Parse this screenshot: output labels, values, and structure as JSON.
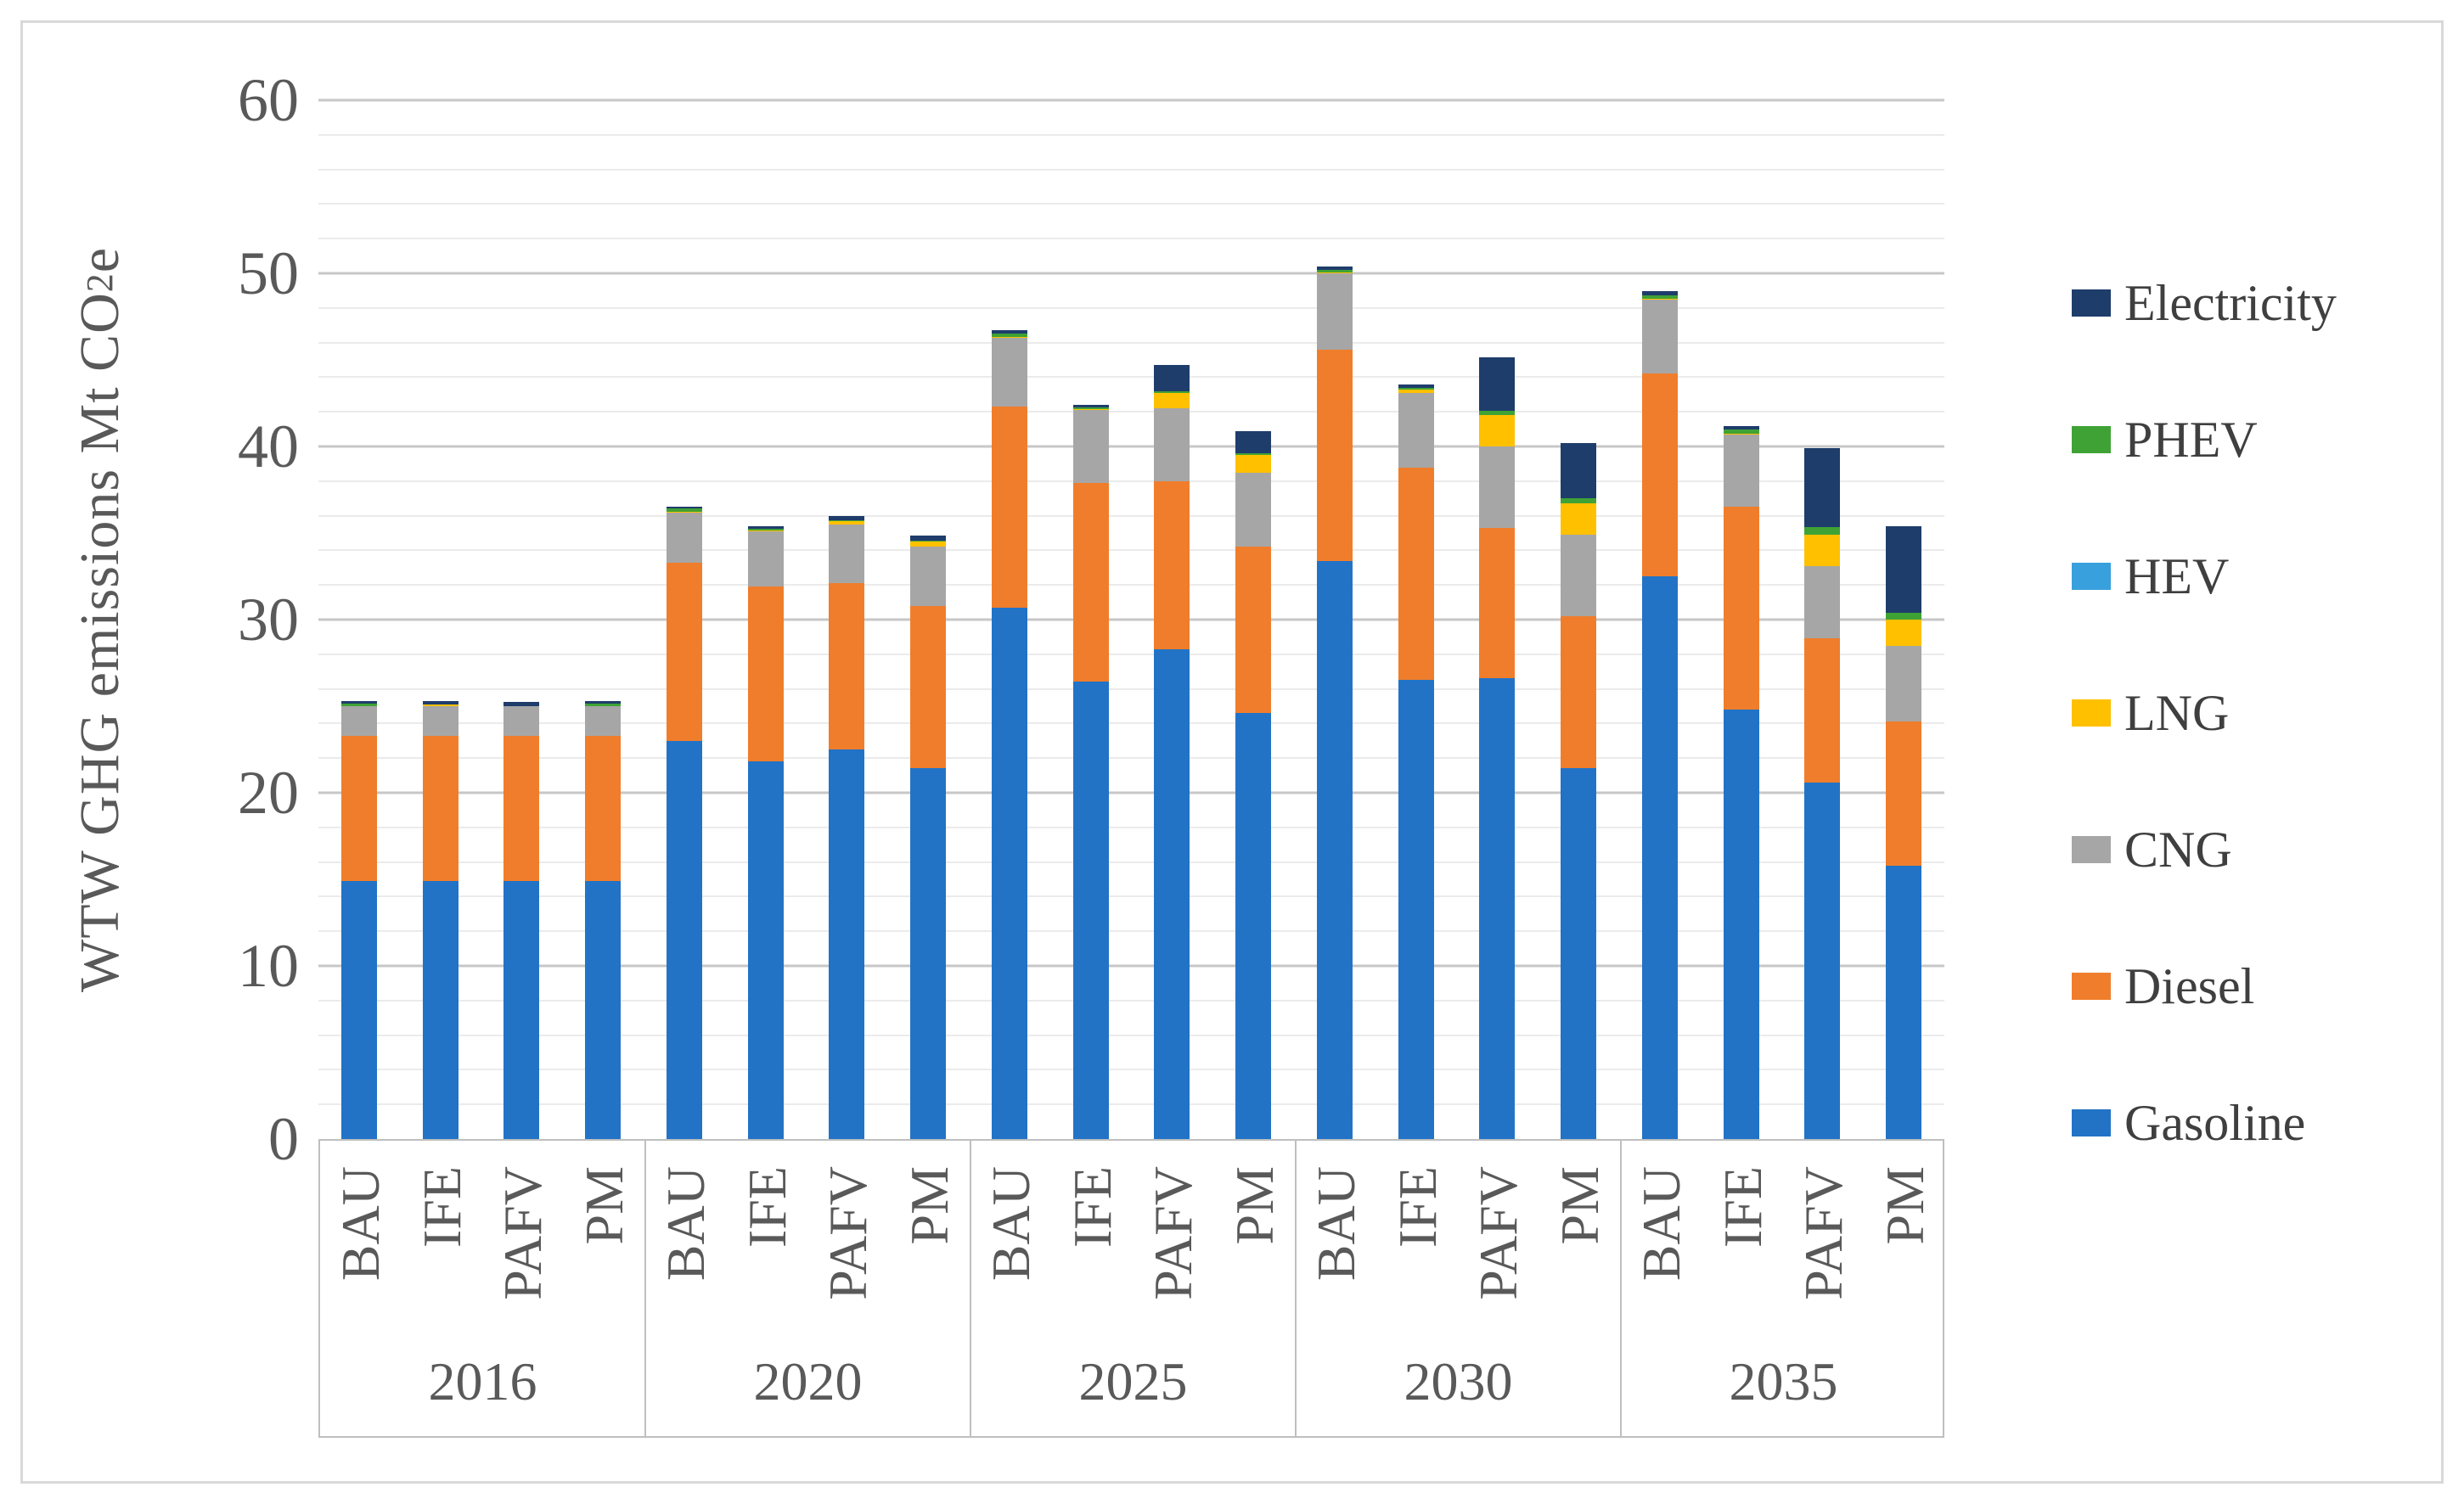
{
  "chart_data": {
    "type": "bar",
    "stacked": true,
    "title": "",
    "ylabel": {
      "prefix": "WTW GHG emissions Mt CO",
      "sub": "2",
      "suffix": "e"
    },
    "ylim": [
      0,
      60
    ],
    "y_tick_labels": [
      "0",
      "10",
      "20",
      "30",
      "40",
      "50",
      "60"
    ],
    "y_tick_step": 10,
    "minor_grid_step": 2,
    "grid": "horizontal",
    "legend_position": "right",
    "group_labels": [
      "2016",
      "2020",
      "2025",
      "2030",
      "2035"
    ],
    "scenarios": [
      "BAU",
      "IFE",
      "PAFV",
      "PM"
    ],
    "legend_order_top_to_bottom": [
      "Electricity",
      "PHEV",
      "HEV",
      "LNG",
      "CNG",
      "Diesel",
      "Gasoline"
    ],
    "series": [
      {
        "name": "Gasoline",
        "key": "gasoline",
        "color": "#2273C6",
        "values": [
          14.9,
          14.9,
          14.9,
          14.9,
          23.0,
          21.8,
          22.5,
          21.4,
          30.7,
          26.4,
          28.3,
          24.6,
          33.4,
          26.5,
          26.6,
          21.4,
          32.5,
          24.8,
          20.6,
          15.8
        ]
      },
      {
        "name": "Diesel",
        "key": "diesel",
        "color": "#F07D2B",
        "values": [
          8.4,
          8.4,
          8.4,
          8.4,
          10.3,
          10.1,
          9.6,
          9.4,
          11.6,
          11.5,
          9.7,
          9.6,
          12.2,
          12.3,
          8.7,
          8.8,
          11.7,
          11.7,
          8.3,
          8.3
        ]
      },
      {
        "name": "CNG",
        "key": "cng",
        "color": "#A6A6A6",
        "values": [
          1.7,
          1.7,
          1.7,
          1.7,
          2.9,
          3.2,
          3.4,
          3.4,
          4.0,
          4.2,
          4.2,
          4.3,
          4.4,
          4.3,
          4.7,
          4.7,
          4.3,
          4.2,
          4.2,
          4.4
        ]
      },
      {
        "name": "LNG",
        "key": "lng",
        "color": "#FFC000",
        "values": [
          0,
          0.1,
          0,
          0,
          0.05,
          0.05,
          0.2,
          0.3,
          0.05,
          0.05,
          0.9,
          1.0,
          0.05,
          0.2,
          1.8,
          1.8,
          0.05,
          0.05,
          1.8,
          1.5
        ]
      },
      {
        "name": "HEV",
        "key": "hev",
        "color": "#38A0DC",
        "values": [
          0,
          0,
          0,
          0,
          0,
          0,
          0,
          0,
          0,
          0,
          0,
          0,
          0,
          0,
          0,
          0,
          0,
          0,
          0,
          0
        ]
      },
      {
        "name": "PHEV",
        "key": "phev",
        "color": "#3FA235",
        "values": [
          0.15,
          0,
          0,
          0.15,
          0.15,
          0.1,
          0.05,
          0.05,
          0.15,
          0.1,
          0.1,
          0.1,
          0.15,
          0.1,
          0.25,
          0.3,
          0.2,
          0.25,
          0.45,
          0.4
        ]
      },
      {
        "name": "Electricity",
        "key": "electricity",
        "color": "#1E3D6B",
        "values": [
          0.15,
          0.2,
          0.25,
          0.15,
          0.1,
          0.15,
          0.25,
          0.3,
          0.2,
          0.15,
          1.5,
          1.3,
          0.2,
          0.2,
          3.1,
          3.2,
          0.2,
          0.2,
          4.55,
          5.0
        ]
      }
    ]
  }
}
